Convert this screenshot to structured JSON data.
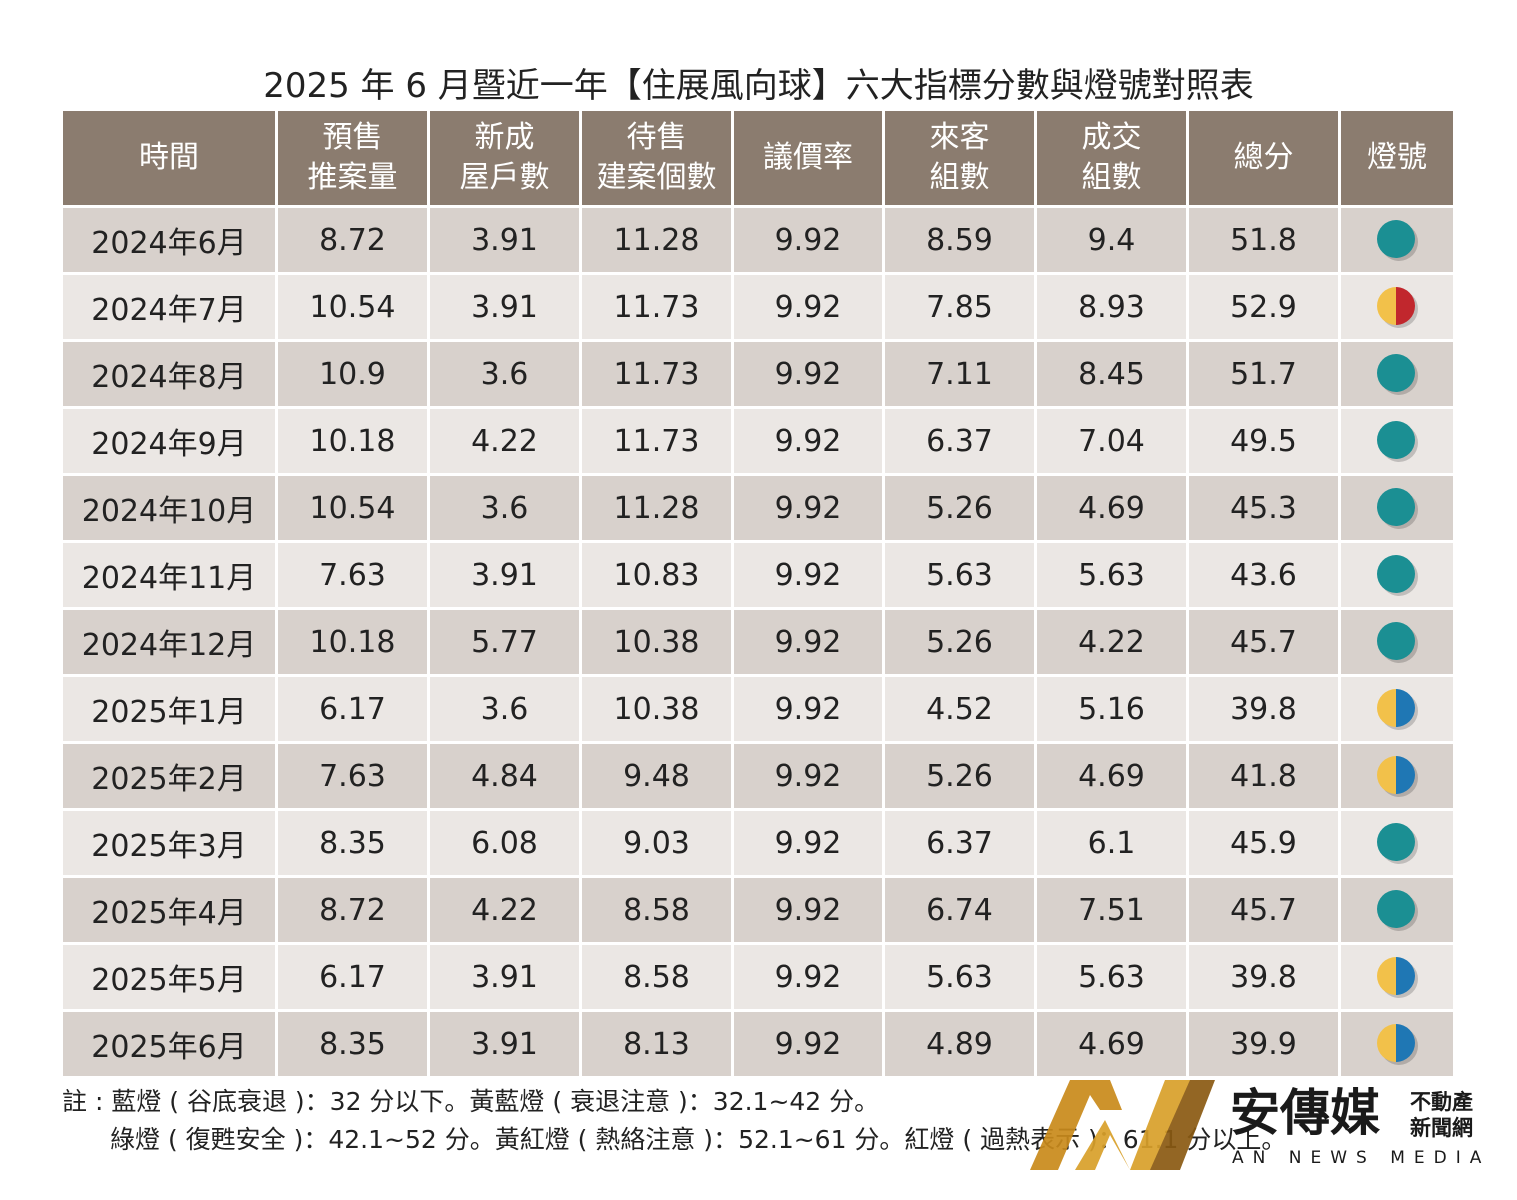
{
  "title": "2025 年 6 月暨近一年【住展風向球】六大指標分數與燈號對照表",
  "table": {
    "header": [
      [
        "時間"
      ],
      [
        "預售",
        "推案量"
      ],
      [
        "新成",
        "屋戶數"
      ],
      [
        "待售",
        "建案個數"
      ],
      [
        "議價率"
      ],
      [
        "來客",
        "組數"
      ],
      [
        "成交",
        "組數"
      ],
      [
        "總分"
      ],
      [
        "燈號"
      ]
    ],
    "rows": [
      [
        "2024年6月",
        "8.72",
        "3.91",
        "11.28",
        "9.92",
        "8.59",
        "9.4",
        "51.8"
      ],
      [
        "2024年7月",
        "10.54",
        "3.91",
        "11.73",
        "9.92",
        "7.85",
        "8.93",
        "52.9"
      ],
      [
        "2024年8月",
        "10.9",
        "3.6",
        "11.73",
        "9.92",
        "7.11",
        "8.45",
        "51.7"
      ],
      [
        "2024年9月",
        "10.18",
        "4.22",
        "11.73",
        "9.92",
        "6.37",
        "7.04",
        "49.5"
      ],
      [
        "2024年10月",
        "10.54",
        "3.6",
        "11.28",
        "9.92",
        "5.26",
        "4.69",
        "45.3"
      ],
      [
        "2024年11月",
        "7.63",
        "3.91",
        "10.83",
        "9.92",
        "5.63",
        "5.63",
        "43.6"
      ],
      [
        "2024年12月",
        "10.18",
        "5.77",
        "10.38",
        "9.92",
        "5.26",
        "4.22",
        "45.7"
      ],
      [
        "2025年1月",
        "6.17",
        "3.6",
        "10.38",
        "9.92",
        "4.52",
        "5.16",
        "39.8"
      ],
      [
        "2025年2月",
        "7.63",
        "4.84",
        "9.48",
        "9.92",
        "5.26",
        "4.69",
        "41.8"
      ],
      [
        "2025年3月",
        "8.35",
        "6.08",
        "9.03",
        "9.92",
        "6.37",
        "6.1",
        "45.9"
      ],
      [
        "2025年4月",
        "8.72",
        "4.22",
        "8.58",
        "9.92",
        "6.74",
        "7.51",
        "45.7"
      ],
      [
        "2025年5月",
        "6.17",
        "3.91",
        "8.58",
        "9.92",
        "5.63",
        "5.63",
        "39.8"
      ],
      [
        "2025年6月",
        "8.35",
        "3.91",
        "8.13",
        "9.92",
        "4.89",
        "4.69",
        "39.9"
      ]
    ],
    "lights": [
      [
        "#1b8f93"
      ],
      [
        "#f2c14a",
        "#c1272d"
      ],
      [
        "#1b8f93"
      ],
      [
        "#1b8f93"
      ],
      [
        "#1b8f93"
      ],
      [
        "#1b8f93"
      ],
      [
        "#1b8f93"
      ],
      [
        "#f2c14a",
        "#1f77b4"
      ],
      [
        "#f2c14a",
        "#1f77b4"
      ],
      [
        "#1b8f93"
      ],
      [
        "#1b8f93"
      ],
      [
        "#f2c14a",
        "#1f77b4"
      ],
      [
        "#f2c14a",
        "#1f77b4"
      ]
    ]
  },
  "note": {
    "label": "註 :",
    "lines": [
      "藍燈 ( 谷底衰退 )：32 分以下。黃藍燈 ( 衰退注意 )：32.1~42 分。",
      "綠燈 ( 復甦安全 )：42.1~52 分。黃紅燈 ( 熱絡注意 )：52.1~61 分。紅燈 ( 過熱表示 )：61.1 分以上。"
    ]
  },
  "logo": {
    "name": "安傳媒",
    "tag1": "不動產",
    "tag2": "新聞網",
    "english": "AN NEWS MEDIA"
  }
}
